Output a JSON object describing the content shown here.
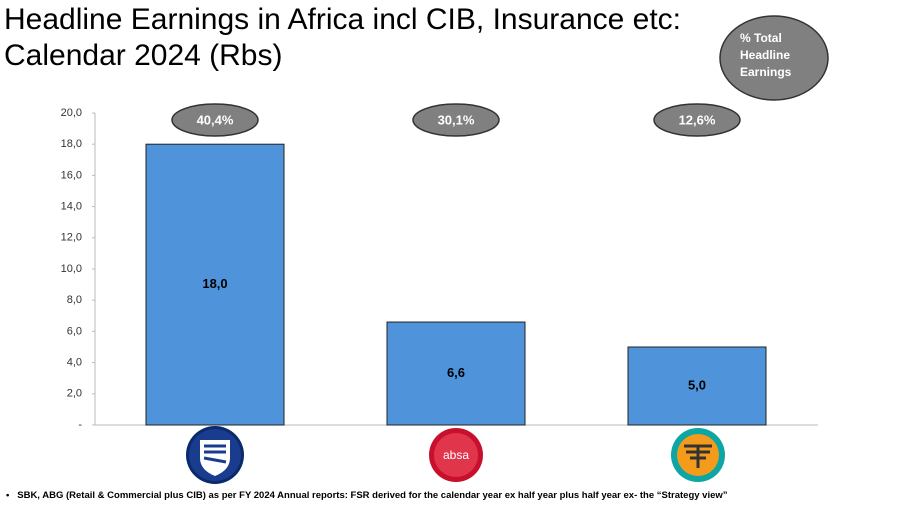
{
  "chart_data": {
    "type": "bar",
    "title": "Headline Earnings in Africa incl CIB, Insurance etc: Calendar 2024 (Rbs)",
    "categories": [
      null,
      "absa",
      null
    ],
    "values": [
      18.0,
      6.6,
      5.0
    ],
    "value_labels": [
      "18,0",
      "6,6",
      "5,0"
    ],
    "color": "#4f94da",
    "ylim": [
      0,
      20
    ],
    "yticks": [
      {
        "value": 0,
        "label": "-"
      },
      {
        "value": 2,
        "label": "2,0"
      },
      {
        "value": 4,
        "label": "4,0"
      },
      {
        "value": 6,
        "label": "6,0"
      },
      {
        "value": 8,
        "label": "8,0"
      },
      {
        "value": 10,
        "label": "10,0"
      },
      {
        "value": 12,
        "label": "12,0"
      },
      {
        "value": 14,
        "label": "14,0"
      },
      {
        "value": 16,
        "label": "16,0"
      },
      {
        "value": 18,
        "label": "18,0"
      },
      {
        "value": 20,
        "label": "20,0"
      }
    ],
    "annotation_title": "% Total Headline Earnings",
    "annotations": [
      "40,4%",
      "30,1%",
      "12,6%"
    ],
    "footnote": "SBK, ABG (Retail & Commercial plus CIB) as per FY 2024 Annual reports: FSR derived for the calendar year ex half year plus half year ex- the “Strategy view”"
  }
}
